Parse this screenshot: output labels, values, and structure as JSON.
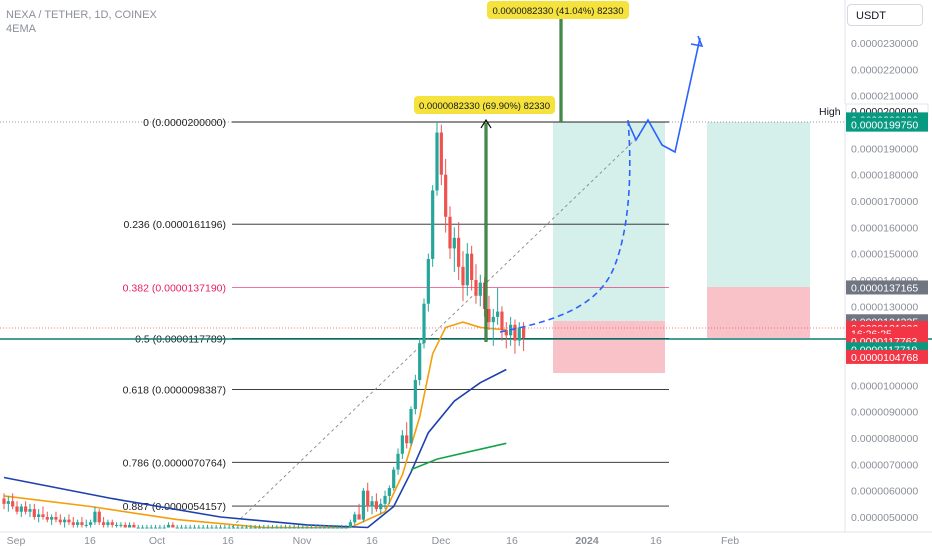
{
  "header": {
    "symbol_line": "NEXA / TETHER, 1D, COINEX",
    "indicator": "4EMA"
  },
  "currency_button": "USDT",
  "colors": {
    "up": "#26a69a",
    "down": "#ef5350",
    "ema_fast": "#f59e0b",
    "ema_mid": "#1e40af",
    "ema_slow": "#16a34a",
    "projection": "#2962ff",
    "fib_382": "#e91e63",
    "support": "#0f7b74"
  },
  "chart_data": {
    "type": "candlestick",
    "x_ticks": [
      "Sep",
      "16",
      "Oct",
      "16",
      "Nov",
      "16",
      "Dec",
      "16",
      "2024",
      "16",
      "Feb"
    ],
    "y_ticks": [
      "0.0000050000",
      "0.0000060000",
      "0.0000070000",
      "0.0000080000",
      "0.0000090000",
      "0.0000100000",
      "0.0000110000",
      "0.0000120000",
      "0.0000130000",
      "0.0000140000",
      "0.0000150000",
      "0.0000160000",
      "0.0000170000",
      "0.0000180000",
      "0.0000190000",
      "0.0000200000",
      "0.0000210000",
      "0.0000220000",
      "0.0000230000"
    ],
    "ylim": [
      4.6e-06,
      2.36e-05
    ],
    "fib_levels": [
      {
        "ratio": 0,
        "label": "0 (0.0000200000)",
        "price": 2e-05
      },
      {
        "ratio": 0.236,
        "label": "0.236 (0.0000161196)",
        "price": 1.61196e-05
      },
      {
        "ratio": 0.382,
        "label": "0.382 (0.0000137190)",
        "price": 1.3719e-05
      },
      {
        "ratio": 0.5,
        "label": "0.5 (0.0000117789)",
        "price": 1.17789e-05
      },
      {
        "ratio": 0.618,
        "label": "0.618 (0.0000098387)",
        "price": 9.8387e-06
      },
      {
        "ratio": 0.786,
        "label": "0.786 (0.0000070764)",
        "price": 7.0764e-06
      },
      {
        "ratio": 0.887,
        "label": "0.887 (0.0000054157)",
        "price": 5.4157e-06
      }
    ],
    "measure_labels": [
      {
        "text": "0.0000082330 (69.90%) 82330"
      },
      {
        "text": "0.0000082330 (41.04%) 82330"
      }
    ],
    "price_tags": [
      {
        "label": "High",
        "value": "0.0000200000",
        "price": 2e-05,
        "bg": "#ffffff",
        "fg": "#131722"
      },
      {
        "value": "0.0000200000",
        "price": 2.01e-05,
        "bg": "#089981",
        "fg": "#ffffff"
      },
      {
        "value": "0.0000199750",
        "price": 1.99e-05,
        "bg": "#089981",
        "fg": "#ffffff"
      },
      {
        "value": "0.0000137165",
        "price": 1.37165e-05,
        "bg": "#707582",
        "fg": "#ffffff"
      },
      {
        "value": "0.0000124335",
        "price": 1.24335e-05,
        "bg": "#707582",
        "fg": "#ffffff"
      },
      {
        "value": "0.0000121326",
        "price": 1.218e-05,
        "bg": "#f23645",
        "fg": "#ffffff"
      },
      {
        "value": "16:26:25",
        "price": 1.196e-05,
        "bg": "#f23645",
        "fg": "#ffffff"
      },
      {
        "value": "0.0000117763",
        "price": 1.169e-05,
        "bg": "#f23645",
        "fg": "#ffffff"
      },
      {
        "value": "0.0000117719",
        "price": 1.137e-05,
        "bg": "#089981",
        "fg": "#ffffff"
      },
      {
        "value": "0.0000104768",
        "price": 1.108e-05,
        "bg": "#f23645",
        "fg": "#ffffff"
      }
    ],
    "candles": [
      [
        5.7e-06,
        5.9e-06,
        5.3e-06,
        5.5e-06
      ],
      [
        5.5e-06,
        5.8e-06,
        5.2e-06,
        5.6e-06
      ],
      [
        5.6e-06,
        5.9e-06,
        5.3e-06,
        5.4e-06
      ],
      [
        5.4e-06,
        5.6e-06,
        5.1e-06,
        5.2e-06
      ],
      [
        5.2e-06,
        5.5e-06,
        5e-06,
        5.4e-06
      ],
      [
        5.4e-06,
        5.6e-06,
        5.1e-06,
        5.2e-06
      ],
      [
        5.2e-06,
        5.5e-06,
        5e-06,
        5.3e-06
      ],
      [
        5.3e-06,
        5.5e-06,
        4.9e-06,
        5e-06
      ],
      [
        5e-06,
        5.3e-06,
        4.8e-06,
        5.1e-06
      ],
      [
        5.1e-06,
        5.4e-06,
        4.9e-06,
        5e-06
      ],
      [
        5e-06,
        5.2e-06,
        4.8e-06,
        4.9e-06
      ],
      [
        4.9e-06,
        5.1e-06,
        4.7e-06,
        5e-06
      ],
      [
        5e-06,
        5.2e-06,
        4.8e-06,
        4.9e-06
      ],
      [
        4.9e-06,
        5.1e-06,
        4.7e-06,
        4.8e-06
      ],
      [
        4.8e-06,
        5e-06,
        4.6e-06,
        4.9e-06
      ],
      [
        4.9e-06,
        5.1e-06,
        4.7e-06,
        4.8e-06
      ],
      [
        4.8e-06,
        5e-06,
        4.6e-06,
        4.7e-06
      ],
      [
        4.7e-06,
        4.9e-06,
        4.6e-06,
        4.8e-06
      ],
      [
        4.8e-06,
        5e-06,
        4.6e-06,
        4.7e-06
      ],
      [
        4.7e-06,
        4.9e-06,
        4.6e-06,
        4.7e-06
      ],
      [
        4.7e-06,
        4.9e-06,
        4.6e-06,
        4.8e-06
      ],
      [
        4.8e-06,
        5.4e-06,
        4.7e-06,
        5.2e-06
      ],
      [
        5.2e-06,
        5.3e-06,
        4.7e-06,
        4.8e-06
      ],
      [
        4.8e-06,
        5e-06,
        4.6e-06,
        4.7e-06
      ],
      [
        4.7e-06,
        4.9e-06,
        4.6e-06,
        4.8e-06
      ],
      [
        4.8e-06,
        4.9e-06,
        4.6e-06,
        4.7e-06
      ],
      [
        4.7e-06,
        4.8e-06,
        4.6e-06,
        4.7e-06
      ],
      [
        4.7e-06,
        4.8e-06,
        4.6e-06,
        4.7e-06
      ],
      [
        4.7e-06,
        4.8e-06,
        4.6e-06,
        4.6e-06
      ],
      [
        4.6e-06,
        4.8e-06,
        4.6e-06,
        4.7e-06
      ],
      [
        4.7e-06,
        4.8e-06,
        4.6e-06,
        4.6e-06
      ],
      [
        4.6e-06,
        4.7e-06,
        4.6e-06,
        4.6e-06
      ],
      [
        4.6e-06,
        4.7e-06,
        4.6e-06,
        4.6e-06
      ],
      [
        4.6e-06,
        4.7e-06,
        4.6e-06,
        4.6e-06
      ],
      [
        4.6e-06,
        4.7e-06,
        4.6e-06,
        4.6e-06
      ],
      [
        4.6e-06,
        4.7e-06,
        4.6e-06,
        4.6e-06
      ],
      [
        4.6e-06,
        4.7e-06,
        4.6e-06,
        4.6e-06
      ],
      [
        4.6e-06,
        4.7e-06,
        4.6e-06,
        4.6e-06
      ],
      [
        4.6e-06,
        4.8e-06,
        4.6e-06,
        4.7e-06
      ],
      [
        4.7e-06,
        4.8e-06,
        4.6e-06,
        4.6e-06
      ],
      [
        4.6e-06,
        4.7e-06,
        4.6e-06,
        4.6e-06
      ],
      [
        4.6e-06,
        4.7e-06,
        4.6e-06,
        4.6e-06
      ],
      [
        4.6e-06,
        4.7e-06,
        4.6e-06,
        4.6e-06
      ],
      [
        4.6e-06,
        4.7e-06,
        4.6e-06,
        4.6e-06
      ],
      [
        4.6e-06,
        4.7e-06,
        4.6e-06,
        4.6e-06
      ],
      [
        4.6e-06,
        4.7e-06,
        4.6e-06,
        4.6e-06
      ],
      [
        4.6e-06,
        4.7e-06,
        4.6e-06,
        4.6e-06
      ],
      [
        4.6e-06,
        4.7e-06,
        4.6e-06,
        4.6e-06
      ],
      [
        4.6e-06,
        4.7e-06,
        4.6e-06,
        4.6e-06
      ],
      [
        4.6e-06,
        4.7e-06,
        4.6e-06,
        4.6e-06
      ],
      [
        4.6e-06,
        4.7e-06,
        4.6e-06,
        4.6e-06
      ],
      [
        4.6e-06,
        4.7e-06,
        4.6e-06,
        4.6e-06
      ],
      [
        4.6e-06,
        4.7e-06,
        4.6e-06,
        4.6e-06
      ],
      [
        4.6e-06,
        4.7e-06,
        4.6e-06,
        4.6e-06
      ],
      [
        4.6e-06,
        4.7e-06,
        4.6e-06,
        4.6e-06
      ],
      [
        4.6e-06,
        4.7e-06,
        4.6e-06,
        4.6e-06
      ],
      [
        4.6e-06,
        4.7e-06,
        4.6e-06,
        4.6e-06
      ],
      [
        4.6e-06,
        4.7e-06,
        4.6e-06,
        4.6e-06
      ],
      [
        4.6e-06,
        4.7e-06,
        4.6e-06,
        4.6e-06
      ],
      [
        4.6e-06,
        4.7e-06,
        4.6e-06,
        4.6e-06
      ],
      [
        4.6e-06,
        4.7e-06,
        4.6e-06,
        4.6e-06
      ],
      [
        4.6e-06,
        4.7e-06,
        4.6e-06,
        4.6e-06
      ],
      [
        4.6e-06,
        4.7e-06,
        4.6e-06,
        4.6e-06
      ],
      [
        4.6e-06,
        4.7e-06,
        4.6e-06,
        4.6e-06
      ],
      [
        4.6e-06,
        4.7e-06,
        4.6e-06,
        4.6e-06
      ],
      [
        4.6e-06,
        4.7e-06,
        4.6e-06,
        4.6e-06
      ],
      [
        4.6e-06,
        4.7e-06,
        4.6e-06,
        4.6e-06
      ],
      [
        4.6e-06,
        4.7e-06,
        4.6e-06,
        4.6e-06
      ],
      [
        4.6e-06,
        4.7e-06,
        4.6e-06,
        4.6e-06
      ],
      [
        4.6e-06,
        4.7e-06,
        4.6e-06,
        4.6e-06
      ],
      [
        4.6e-06,
        4.7e-06,
        4.6e-06,
        4.6e-06
      ],
      [
        4.6e-06,
        4.7e-06,
        4.6e-06,
        4.6e-06
      ],
      [
        4.6e-06,
        4.7e-06,
        4.6e-06,
        4.6e-06
      ],
      [
        4.6e-06,
        4.7e-06,
        4.6e-06,
        4.6e-06
      ],
      [
        4.6e-06,
        4.7e-06,
        4.6e-06,
        4.6e-06
      ],
      [
        4.6e-06,
        4.7e-06,
        4.6e-06,
        4.6e-06
      ],
      [
        4.6e-06,
        4.7e-06,
        4.6e-06,
        4.6e-06
      ],
      [
        4.6e-06,
        4.7e-06,
        4.6e-06,
        4.6e-06
      ],
      [
        4.6e-06,
        4.7e-06,
        4.6e-06,
        4.6e-06
      ],
      [
        4.6e-06,
        4.7e-06,
        4.6e-06,
        4.6e-06
      ],
      [
        4.6e-06,
        4.9e-06,
        4.6e-06,
        4.8e-06
      ],
      [
        4.8e-06,
        5.2e-06,
        4.7e-06,
        5.1e-06
      ],
      [
        5.1e-06,
        5.5e-06,
        5e-06,
        4.9e-06
      ],
      [
        4.9e-06,
        6.1e-06,
        4.8e-06,
        6e-06
      ],
      [
        6e-06,
        6.3e-06,
        5.2e-06,
        5.4e-06
      ],
      [
        5.4e-06,
        5.8e-06,
        5.1e-06,
        5.6e-06
      ],
      [
        5.6e-06,
        5.9e-06,
        5.2e-06,
        5.3e-06
      ],
      [
        5.3e-06,
        5.7e-06,
        5.1e-06,
        5.5e-06
      ],
      [
        5.5e-06,
        6e-06,
        5.3e-06,
        5.8e-06
      ],
      [
        5.8e-06,
        6.2e-06,
        5.5e-06,
        6.1e-06
      ],
      [
        6.1e-06,
        6.9e-06,
        6e-06,
        6.8e-06
      ],
      [
        6.8e-06,
        7.6e-06,
        6.6e-06,
        7.4e-06
      ],
      [
        7.4e-06,
        8.3e-06,
        7.2e-06,
        8.1e-06
      ],
      [
        8.1e-06,
        8.6e-06,
        7.6e-06,
        7.8e-06
      ],
      [
        7.8e-06,
        9.2e-06,
        7.7e-06,
        9.1e-06
      ],
      [
        9.1e-06,
        1.04e-05,
        8.9e-06,
        1.02e-05
      ],
      [
        1.02e-05,
        1.18e-05,
        1e-05,
        1.16e-05
      ],
      [
        1.16e-05,
        1.33e-05,
        1.14e-05,
        1.31e-05
      ],
      [
        1.31e-05,
        1.5e-05,
        1.28e-05,
        1.48e-05
      ],
      [
        1.48e-05,
        1.76e-05,
        1.45e-05,
        1.74e-05
      ],
      [
        1.74e-05,
        2e-05,
        1.72e-05,
        1.96e-05
      ],
      [
        1.96e-05,
        1.99e-05,
        1.76e-05,
        1.8e-05
      ],
      [
        1.8e-05,
        1.86e-05,
        1.58e-05,
        1.64e-05
      ],
      [
        1.64e-05,
        1.68e-05,
        1.48e-05,
        1.52e-05
      ],
      [
        1.52e-05,
        1.6e-05,
        1.43e-05,
        1.56e-05
      ],
      [
        1.56e-05,
        1.62e-05,
        1.4e-05,
        1.45e-05
      ],
      [
        1.45e-05,
        1.51e-05,
        1.32e-05,
        1.38e-05
      ],
      [
        1.38e-05,
        1.54e-05,
        1.34e-05,
        1.5e-05
      ],
      [
        1.5e-05,
        1.53e-05,
        1.36e-05,
        1.4e-05
      ],
      [
        1.4e-05,
        1.46e-05,
        1.31e-05,
        1.34e-05
      ],
      [
        1.34e-05,
        1.42e-05,
        1.3e-05,
        1.39e-05
      ],
      [
        1.39e-05,
        1.41e-05,
        1.26e-05,
        1.29e-05
      ],
      [
        1.29e-05,
        1.34e-05,
        1.21e-05,
        1.24e-05
      ],
      [
        1.24e-05,
        1.29e-05,
        1.15e-05,
        1.26e-05
      ],
      [
        1.26e-05,
        1.37e-05,
        1.23e-05,
        1.28e-05
      ],
      [
        1.28e-05,
        1.3e-05,
        1.17e-05,
        1.21e-05
      ],
      [
        1.21e-05,
        1.24e-05,
        1.14e-05,
        1.19e-05
      ],
      [
        1.19e-05,
        1.26e-05,
        1.15e-05,
        1.23e-05
      ],
      [
        1.23e-05,
        1.25e-05,
        1.12e-05,
        1.17e-05
      ],
      [
        1.17e-05,
        1.24e-05,
        1.15e-05,
        1.22e-05
      ],
      [
        1.22e-05,
        1.24e-05,
        1.13e-05,
        1.18e-05
      ]
    ],
    "ema": [
      {
        "name": "ema_fast",
        "color": "#f59e0b",
        "points": [
          [
            0,
            5.8e-06
          ],
          [
            20,
            5.4e-06
          ],
          [
            40,
            4.9e-06
          ],
          [
            60,
            4.6e-06
          ],
          [
            80,
            4.6e-06
          ],
          [
            88,
            5.2e-06
          ],
          [
            92,
            6.6e-06
          ],
          [
            96,
            8.8e-06
          ],
          [
            99,
            1.12e-05
          ],
          [
            102,
            1.22e-05
          ],
          [
            106,
            1.24e-05
          ],
          [
            110,
            1.22e-05
          ],
          [
            116,
            1.21e-05
          ]
        ]
      },
      {
        "name": "ema_mid",
        "color": "#1e40af",
        "points": [
          [
            0,
            6.5e-06
          ],
          [
            25,
            5.7e-06
          ],
          [
            50,
            5e-06
          ],
          [
            70,
            4.7e-06
          ],
          [
            84,
            4.6e-06
          ],
          [
            90,
            5.4e-06
          ],
          [
            94,
            6.7e-06
          ],
          [
            98,
            8.2e-06
          ],
          [
            104,
            9.4e-06
          ],
          [
            110,
            1.01e-05
          ],
          [
            116,
            1.06e-05
          ]
        ]
      },
      {
        "name": "ema_slow",
        "color": "#16a34a",
        "points": [
          [
            94,
            6.8e-06
          ],
          [
            100,
            7.2e-06
          ],
          [
            108,
            7.5e-06
          ],
          [
            116,
            7.8e-06
          ]
        ]
      }
    ]
  }
}
